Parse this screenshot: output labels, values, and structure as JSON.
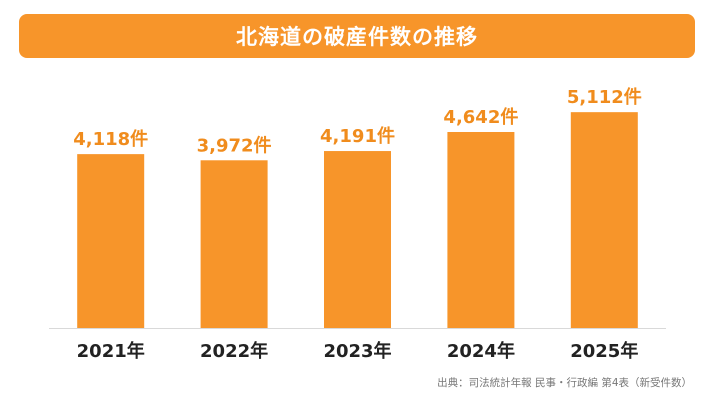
{
  "title": "北海道の破産件数の推移",
  "source": "出典：司法統計年報 民事・行政編 第4表（新受件数）",
  "colors": {
    "accent": "#f7952a",
    "bar": "#f7952a",
    "label": "#f08c1d",
    "axis_text": "#222222",
    "baseline": "#d9d9d9"
  },
  "chart_data": {
    "type": "bar",
    "title": "北海道の破産件数の推移",
    "categories": [
      "2021年",
      "2022年",
      "2023年",
      "2024年",
      "2025年"
    ],
    "values": [
      4118,
      3972,
      4191,
      4642,
      5112
    ],
    "value_labels": [
      "4,118件",
      "3,972件",
      "4,191件",
      "4,642件",
      "5,112件"
    ],
    "xlabel": "",
    "ylabel": "",
    "ylim": [
      0,
      5400
    ],
    "grid": false,
    "legend": "none"
  }
}
